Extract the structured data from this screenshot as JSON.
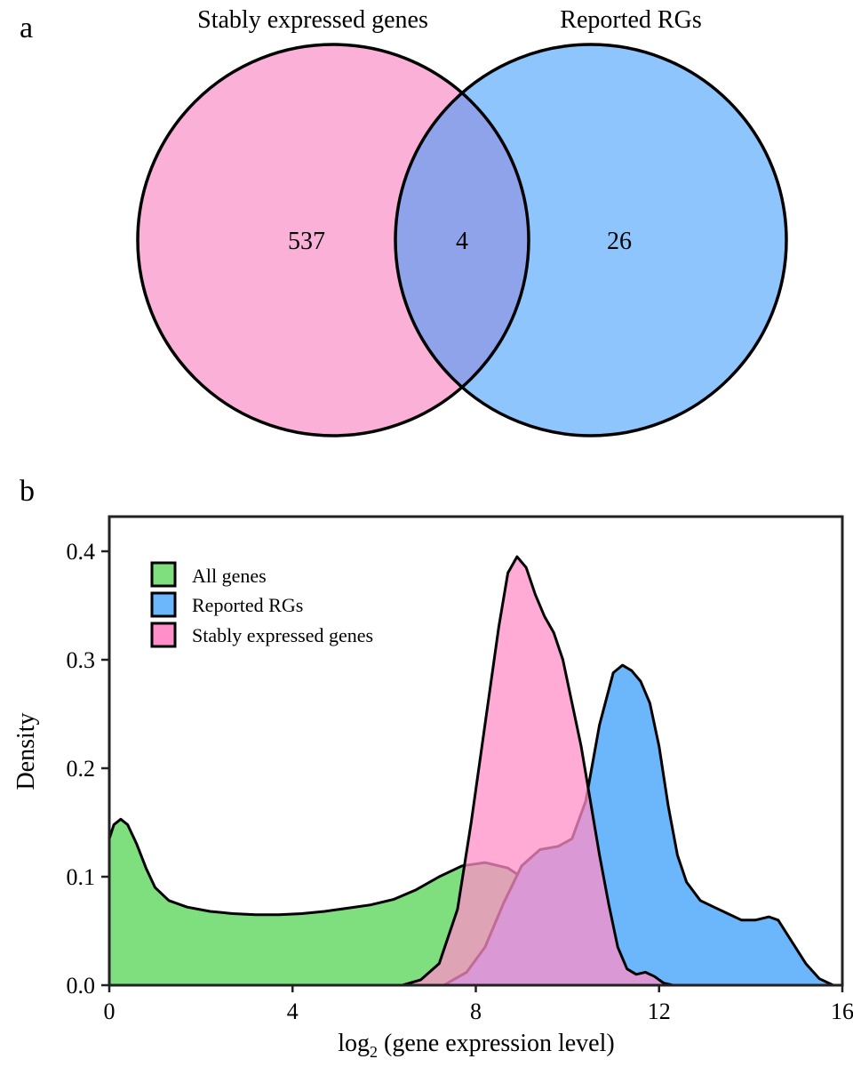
{
  "panel_a_label": "a",
  "panel_b_label": "b",
  "chart_data": [
    {
      "type": "venn",
      "sets": [
        {
          "name": "Stably expressed genes",
          "only": 537,
          "color": "#fbb0d8"
        },
        {
          "name": "Reported RGs",
          "only": 26,
          "color": "#8ec5fd"
        }
      ],
      "intersection": {
        "value": 4,
        "color": "#8fa3ea"
      }
    },
    {
      "type": "area",
      "xlabel_prefix": "log",
      "xlabel_sub": "2",
      "xlabel_suffix": " (gene expression level)",
      "ylabel": "Density",
      "xlim": [
        0,
        16
      ],
      "ylim": [
        0,
        0.43
      ],
      "xticks": [
        "0",
        "4",
        "8",
        "12",
        "16"
      ],
      "yticks": [
        "0.0",
        "0.1",
        "0.2",
        "0.3",
        "0.4"
      ],
      "legend_position": "top-left",
      "series": [
        {
          "name": "All genes",
          "color": "#7fdf7f",
          "points": [
            [
              0,
              0.135
            ],
            [
              0.1,
              0.148
            ],
            [
              0.25,
              0.153
            ],
            [
              0.4,
              0.148
            ],
            [
              0.6,
              0.13
            ],
            [
              0.8,
              0.108
            ],
            [
              1.0,
              0.09
            ],
            [
              1.3,
              0.078
            ],
            [
              1.7,
              0.072
            ],
            [
              2.2,
              0.068
            ],
            [
              2.7,
              0.066
            ],
            [
              3.2,
              0.065
            ],
            [
              3.7,
              0.065
            ],
            [
              4.2,
              0.066
            ],
            [
              4.7,
              0.068
            ],
            [
              5.2,
              0.071
            ],
            [
              5.7,
              0.074
            ],
            [
              6.2,
              0.079
            ],
            [
              6.7,
              0.088
            ],
            [
              7.2,
              0.1
            ],
            [
              7.7,
              0.11
            ],
            [
              8.2,
              0.113
            ],
            [
              8.7,
              0.108
            ],
            [
              9.2,
              0.094
            ],
            [
              9.7,
              0.075
            ],
            [
              10.2,
              0.053
            ],
            [
              10.7,
              0.032
            ],
            [
              11.2,
              0.017
            ],
            [
              11.7,
              0.008
            ],
            [
              12.2,
              0.004
            ],
            [
              12.7,
              0.002
            ],
            [
              13.5,
              0.001
            ],
            [
              14.5,
              0.0005
            ],
            [
              15.5,
              0
            ]
          ]
        },
        {
          "name": "Reported RGs",
          "color": "#6cb6fb",
          "points": [
            [
              7.3,
              0
            ],
            [
              7.8,
              0.012
            ],
            [
              8.2,
              0.035
            ],
            [
              8.6,
              0.075
            ],
            [
              9.0,
              0.11
            ],
            [
              9.4,
              0.125
            ],
            [
              9.8,
              0.128
            ],
            [
              10.1,
              0.135
            ],
            [
              10.4,
              0.17
            ],
            [
              10.7,
              0.24
            ],
            [
              11.0,
              0.288
            ],
            [
              11.2,
              0.295
            ],
            [
              11.4,
              0.29
            ],
            [
              11.6,
              0.28
            ],
            [
              11.8,
              0.26
            ],
            [
              12.0,
              0.22
            ],
            [
              12.2,
              0.165
            ],
            [
              12.4,
              0.12
            ],
            [
              12.6,
              0.095
            ],
            [
              12.9,
              0.078
            ],
            [
              13.2,
              0.072
            ],
            [
              13.5,
              0.066
            ],
            [
              13.8,
              0.06
            ],
            [
              14.1,
              0.06
            ],
            [
              14.4,
              0.063
            ],
            [
              14.6,
              0.06
            ],
            [
              14.9,
              0.04
            ],
            [
              15.2,
              0.02
            ],
            [
              15.5,
              0.006
            ],
            [
              15.8,
              0
            ]
          ]
        },
        {
          "name": "Stably expressed genes",
          "color": "#ff8fc8",
          "points": [
            [
              6.4,
              0
            ],
            [
              6.8,
              0.005
            ],
            [
              7.2,
              0.02
            ],
            [
              7.6,
              0.07
            ],
            [
              7.9,
              0.15
            ],
            [
              8.2,
              0.24
            ],
            [
              8.5,
              0.33
            ],
            [
              8.7,
              0.38
            ],
            [
              8.9,
              0.395
            ],
            [
              9.1,
              0.385
            ],
            [
              9.3,
              0.36
            ],
            [
              9.5,
              0.34
            ],
            [
              9.7,
              0.325
            ],
            [
              9.9,
              0.3
            ],
            [
              10.1,
              0.26
            ],
            [
              10.3,
              0.22
            ],
            [
              10.5,
              0.17
            ],
            [
              10.7,
              0.12
            ],
            [
              10.9,
              0.075
            ],
            [
              11.1,
              0.035
            ],
            [
              11.3,
              0.015
            ],
            [
              11.5,
              0.01
            ],
            [
              11.7,
              0.012
            ],
            [
              11.9,
              0.008
            ],
            [
              12.1,
              0.002
            ],
            [
              12.3,
              0
            ]
          ]
        }
      ]
    }
  ]
}
